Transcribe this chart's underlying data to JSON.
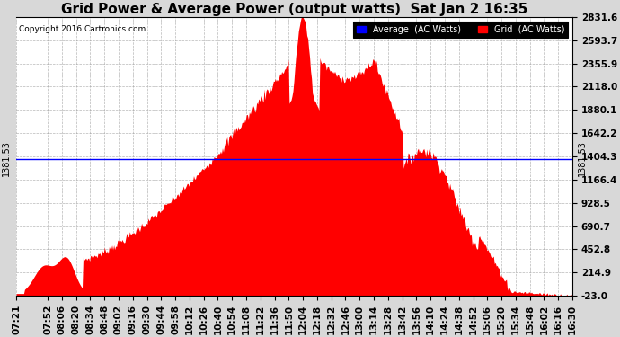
{
  "title": "Grid Power & Average Power (output watts)  Sat Jan 2 16:35",
  "copyright": "Copyright 2016 Cartronics.com",
  "ylabel_right_ticks": [
    2831.6,
    2593.7,
    2355.9,
    2118.0,
    1880.1,
    1642.2,
    1404.3,
    1166.4,
    928.5,
    690.7,
    452.8,
    214.9,
    -23.0
  ],
  "ylim": [
    -23.0,
    2831.6
  ],
  "average_line_value": 1381.53,
  "average_label": "1381.53",
  "legend_avg_label": "Average  (AC Watts)",
  "legend_grid_label": "Grid  (AC Watts)",
  "bg_color": "#d8d8d8",
  "plot_bg_color": "#ffffff",
  "fill_color": "#ff0000",
  "line_color": "#ff0000",
  "avg_line_color": "#0000ff",
  "grid_color": "#999999",
  "title_fontsize": 11,
  "tick_fontsize": 7.5,
  "avg_fontsize": 7,
  "xtick_labels": [
    "07:21",
    "07:52",
    "08:06",
    "08:20",
    "08:34",
    "08:48",
    "09:02",
    "09:16",
    "09:30",
    "09:44",
    "09:58",
    "10:12",
    "10:26",
    "10:40",
    "10:54",
    "11:08",
    "11:22",
    "11:36",
    "11:50",
    "12:04",
    "12:18",
    "12:32",
    "12:46",
    "13:00",
    "13:14",
    "13:28",
    "13:42",
    "13:56",
    "14:10",
    "14:24",
    "14:38",
    "14:52",
    "15:06",
    "15:20",
    "15:34",
    "15:48",
    "16:02",
    "16:16",
    "16:30"
  ],
  "figsize": [
    6.9,
    3.75
  ],
  "dpi": 100
}
